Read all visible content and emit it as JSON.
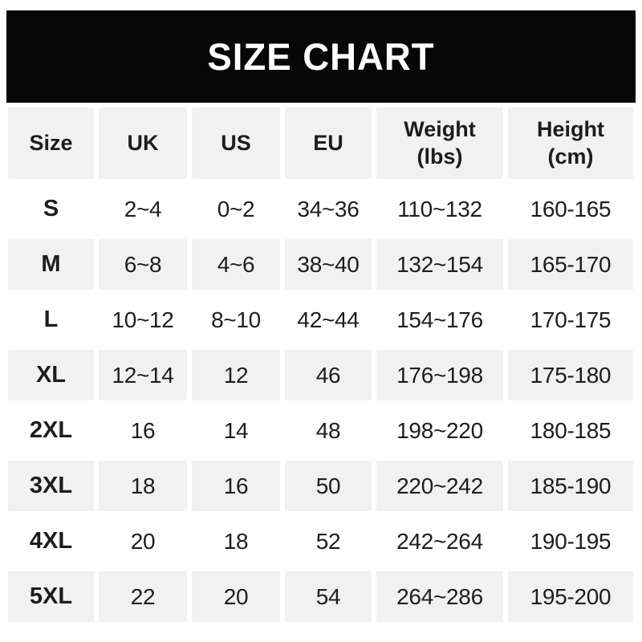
{
  "banner": {
    "title": "SIZE CHART",
    "bg_color": "#070707",
    "text_color": "#ffffff"
  },
  "chart_data": {
    "type": "table",
    "title": "SIZE CHART",
    "columns": [
      {
        "key": "size",
        "label": "Size"
      },
      {
        "key": "uk",
        "label": "UK"
      },
      {
        "key": "us",
        "label": "US"
      },
      {
        "key": "eu",
        "label": "EU"
      },
      {
        "key": "weight",
        "label": "Weight",
        "unit": "(lbs)"
      },
      {
        "key": "height",
        "label": "Height",
        "unit": "(cm)"
      }
    ],
    "rows": [
      [
        "S",
        "2~4",
        "0~2",
        "34~36",
        "110~132",
        "160-165"
      ],
      [
        "M",
        "6~8",
        "4~6",
        "38~40",
        "132~154",
        "165-170"
      ],
      [
        "L",
        "10~12",
        "8~10",
        "42~44",
        "154~176",
        "170-175"
      ],
      [
        "XL",
        "12~14",
        "12",
        "46",
        "176~198",
        "175-180"
      ],
      [
        "2XL",
        "16",
        "14",
        "48",
        "198~220",
        "180-185"
      ],
      [
        "3XL",
        "18",
        "16",
        "50",
        "220~242",
        "185-190"
      ],
      [
        "4XL",
        "20",
        "18",
        "52",
        "242~264",
        "190-195"
      ],
      [
        "5XL",
        "22",
        "20",
        "54",
        "264~286",
        "195-200"
      ]
    ],
    "layout": {
      "header_bg": "#f1f1f2",
      "row_alt_bg": "#f1f1f2",
      "row_bg": "#ffffff",
      "text_color": "#1d1d1d",
      "gap_color": "#ffffff",
      "striping": "rows M, XL, 3XL, 5XL shaded; S, L, 2XL, 4XL white"
    }
  }
}
